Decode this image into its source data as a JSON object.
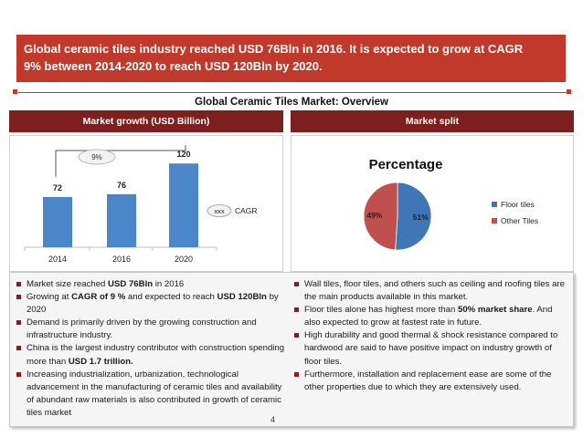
{
  "banner": {
    "line1": "Global ceramic tiles industry reached USD 76Bln in 2016. It is expected to grow  at CAGR",
    "line2": "9% between 2014-2020 to reach USD 120Bln  by 2020."
  },
  "overview_title": "Global Ceramic Tiles Market: Overview",
  "left_panel": {
    "header": "Market growth (USD Billion)"
  },
  "right_panel": {
    "header": "Market split"
  },
  "chart_data": [
    {
      "type": "bar",
      "categories": [
        "2014",
        "2016",
        "2020"
      ],
      "values": [
        72,
        76,
        120
      ],
      "ylim": [
        0,
        140
      ],
      "bar_color": "#4a86c8",
      "annotations": {
        "cagr_value": "9%",
        "cagr_legend_box": "xxx",
        "cagr_legend_label": "CAGR"
      }
    },
    {
      "type": "pie",
      "title": "Percentage",
      "labels": [
        "Floor tiles",
        "Other Tiles"
      ],
      "values": [
        51,
        49
      ],
      "value_labels": [
        "51%",
        "49%"
      ],
      "colors": [
        "#3f76b5",
        "#c0504d"
      ],
      "legend_position": "right"
    }
  ],
  "left_bullets": [
    {
      "parts": [
        {
          "t": "Market size reached "
        },
        {
          "t": "USD 76Bln",
          "b": true
        },
        {
          "t": " in 2016"
        }
      ]
    },
    {
      "parts": [
        {
          "t": "Growing at "
        },
        {
          "t": "CAGR of 9 %",
          "b": true
        },
        {
          "t": "  and expected to reach "
        },
        {
          "t": "USD 120Bln",
          "b": true
        },
        {
          "t": " by 2020"
        }
      ]
    },
    {
      "parts": [
        {
          "t": " Demand is primarily driven by the growing construction and infrastructure industry."
        }
      ]
    },
    {
      "parts": [
        {
          "t": "China is the largest industry contributor with construction spending more than "
        },
        {
          "t": "USD 1.7 trillion.",
          "b": true
        }
      ]
    },
    {
      "parts": [
        {
          "t": " Increasing industrialization, urbanization, technological advancement in the manufacturing of ceramic tiles and availability of abundant raw materials is also contributed in growth of ceramic tiles market"
        }
      ]
    }
  ],
  "right_bullets": [
    {
      "parts": [
        {
          "t": "Wall tiles, floor tiles, and others such as ceiling and roofing tiles are the main products available in this market."
        }
      ]
    },
    {
      "parts": [
        {
          "t": "Floor tiles alone has highest  more than "
        },
        {
          "t": "50% market share",
          "b": true
        },
        {
          "t": ". And also expected to grow at fastest rate in future."
        }
      ]
    },
    {
      "parts": [
        {
          "t": "High durability and good thermal & shock resistance compared to hardwood are said to have   positive impact on industry growth of floor tiles."
        }
      ]
    },
    {
      "parts": [
        {
          "t": "Furthermore, installation and replacement ease are some of the other properties due to which they are extensively used."
        }
      ]
    }
  ],
  "page_number": "4"
}
